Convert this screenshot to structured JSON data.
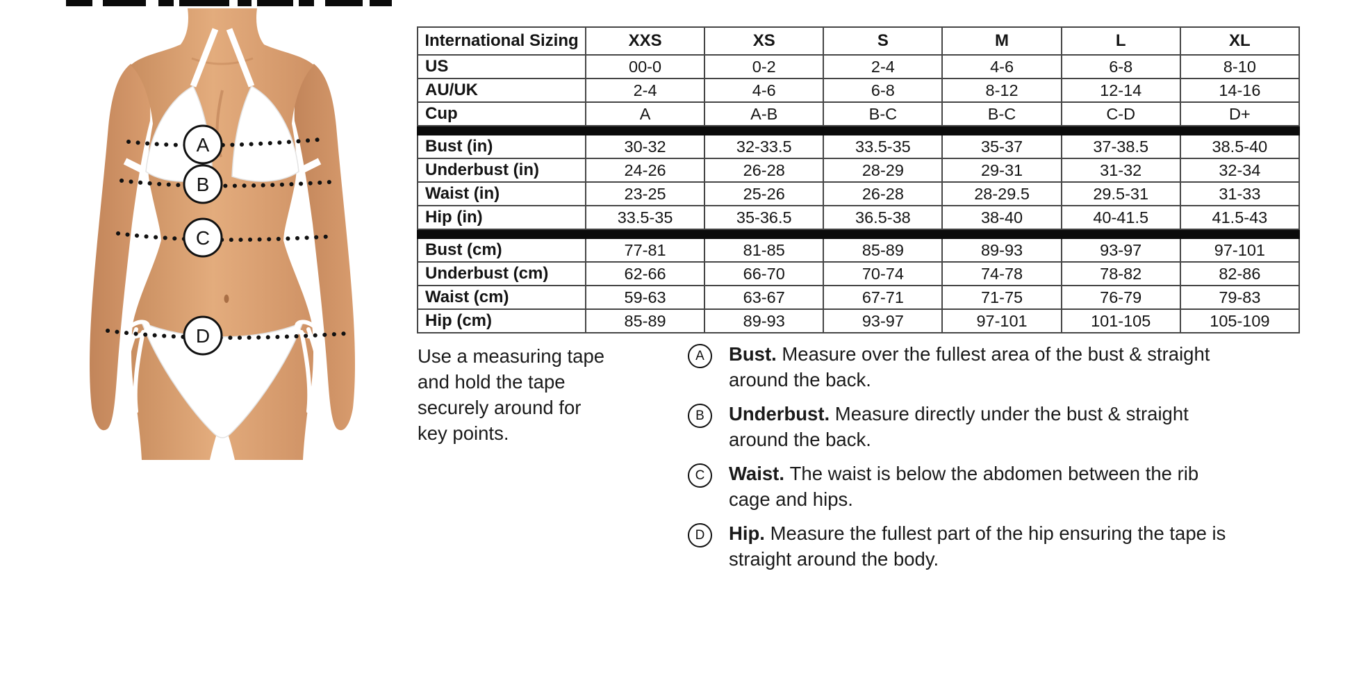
{
  "size_table": {
    "header": [
      "International Sizing",
      "XXS",
      "XS",
      "S",
      "M",
      "L",
      "XL"
    ],
    "rows": [
      {
        "label": "US",
        "group": "sizing",
        "values": [
          "00-0",
          "0-2",
          "2-4",
          "4-6",
          "6-8",
          "8-10"
        ]
      },
      {
        "label": "AU/UK",
        "group": "sizing",
        "values": [
          "2-4",
          "4-6",
          "6-8",
          "8-12",
          "12-14",
          "14-16"
        ]
      },
      {
        "label": "Cup",
        "group": "sizing",
        "values": [
          "A",
          "A-B",
          "B-C",
          "B-C",
          "C-D",
          "D+"
        ]
      },
      {
        "label": "Bust (in)",
        "group": "inches",
        "values": [
          "30-32",
          "32-33.5",
          "33.5-35",
          "35-37",
          "37-38.5",
          "38.5-40"
        ]
      },
      {
        "label": "Underbust (in)",
        "group": "inches",
        "values": [
          "24-26",
          "26-28",
          "28-29",
          "29-31",
          "31-32",
          "32-34"
        ]
      },
      {
        "label": "Waist (in)",
        "group": "inches",
        "values": [
          "23-25",
          "25-26",
          "26-28",
          "28-29.5",
          "29.5-31",
          "31-33"
        ]
      },
      {
        "label": "Hip (in)",
        "group": "inches",
        "values": [
          "33.5-35",
          "35-36.5",
          "36.5-38",
          "38-40",
          "40-41.5",
          "41.5-43"
        ]
      },
      {
        "label": "Bust (cm)",
        "group": "cm",
        "values": [
          "77-81",
          "81-85",
          "85-89",
          "89-93",
          "93-97",
          "97-101"
        ]
      },
      {
        "label": "Underbust (cm)",
        "group": "cm",
        "values": [
          "62-66",
          "66-70",
          "70-74",
          "74-78",
          "78-82",
          "82-86"
        ]
      },
      {
        "label": "Waist (cm)",
        "group": "cm",
        "values": [
          "59-63",
          "63-67",
          "67-71",
          "71-75",
          "76-79",
          "79-83"
        ]
      },
      {
        "label": "Hip (cm)",
        "group": "cm",
        "values": [
          "85-89",
          "89-93",
          "93-97",
          "97-101",
          "101-105",
          "105-109"
        ]
      }
    ]
  },
  "instructions": {
    "intro_lines": [
      "Use a measuring tape",
      "and hold the tape",
      "securely around for",
      "key points."
    ]
  },
  "measure_points": [
    {
      "letter": "A",
      "term": "Bust.",
      "desc_lines": [
        "Measure over the fullest area of the bust & straight",
        "around the back."
      ]
    },
    {
      "letter": "B",
      "term": "Underbust.",
      "desc_lines": [
        "Measure directly under the bust & straight",
        "around the back."
      ]
    },
    {
      "letter": "C",
      "term": "Waist.",
      "desc_lines": [
        "The waist is below the abdomen between the rib",
        "cage and hips."
      ]
    },
    {
      "letter": "D",
      "term": "Hip.",
      "desc_lines": [
        "Measure the fullest part of the hip ensuring the tape is",
        "straight around the body."
      ]
    }
  ],
  "figure": {
    "markers": [
      "A",
      "B",
      "C",
      "D"
    ]
  },
  "colors": {
    "text": "#111111",
    "table_border": "#454545",
    "group_divider": "#0b0b0b",
    "skin": "#d9a077",
    "skin_shadow": "#c08357",
    "bikini": "#ffffff",
    "marker_stroke": "#111111"
  }
}
